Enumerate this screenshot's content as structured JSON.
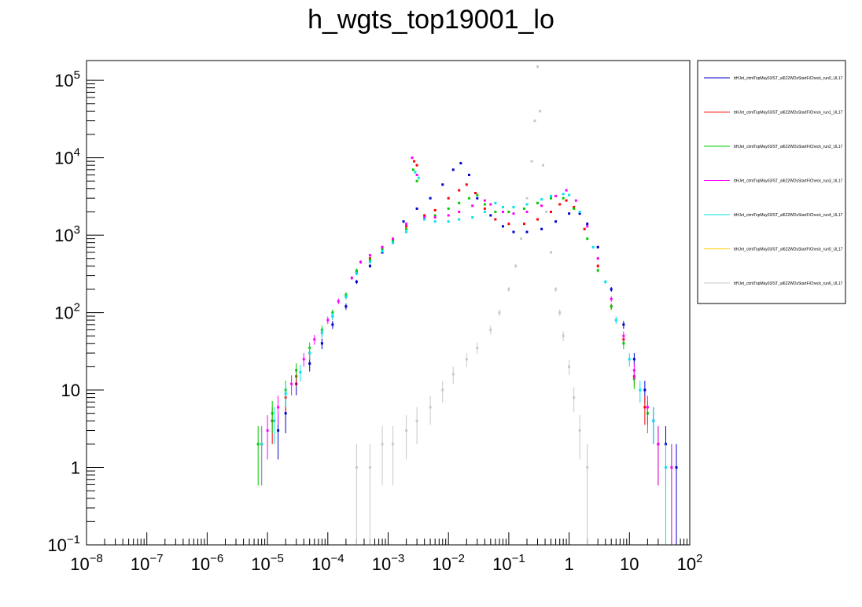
{
  "chart_data": {
    "type": "scatter",
    "title": "h_wgts_top19001_lo",
    "xlabel": "",
    "ylabel": "",
    "xscale": "log",
    "yscale": "log",
    "xlim": [
      1e-08,
      100
    ],
    "ylim": [
      0.1,
      180000
    ],
    "x_tick_labels": [
      {
        "value": 1e-08,
        "base": "10",
        "exp": "−8"
      },
      {
        "value": 1e-07,
        "base": "10",
        "exp": "−7"
      },
      {
        "value": 1e-06,
        "base": "10",
        "exp": "−6"
      },
      {
        "value": 1e-05,
        "base": "10",
        "exp": "−5"
      },
      {
        "value": 0.0001,
        "base": "10",
        "exp": "−4"
      },
      {
        "value": 0.001,
        "base": "10",
        "exp": "−3"
      },
      {
        "value": 0.01,
        "base": "10",
        "exp": "−2"
      },
      {
        "value": 0.1,
        "base": "10",
        "exp": "−1"
      },
      {
        "value": 1,
        "base": "1",
        "exp": ""
      },
      {
        "value": 10,
        "base": "10",
        "exp": ""
      },
      {
        "value": 100,
        "base": "10",
        "exp": "2"
      }
    ],
    "y_tick_labels": [
      {
        "value": 0.1,
        "base": "10",
        "exp": "−1"
      },
      {
        "value": 1,
        "base": "1",
        "exp": ""
      },
      {
        "value": 10,
        "base": "10",
        "exp": ""
      },
      {
        "value": 100,
        "base": "10",
        "exp": "2"
      },
      {
        "value": 1000,
        "base": "10",
        "exp": "3"
      },
      {
        "value": 10000,
        "base": "10",
        "exp": "4"
      },
      {
        "value": 100000,
        "base": "10",
        "exp": "5"
      }
    ],
    "grid": false,
    "legend_position": "right",
    "series": [
      {
        "name": "ttHJet_ctmtTopMay03/ST_al622WDsStartFiCheck_run0_UL17",
        "color": "#0000cc",
        "points": [
          [
            1.5e-05,
            3
          ],
          [
            2e-05,
            5
          ],
          [
            3e-05,
            12
          ],
          [
            5e-05,
            22
          ],
          [
            8e-05,
            40
          ],
          [
            0.00012,
            70
          ],
          [
            0.0002,
            120
          ],
          [
            0.0003,
            250
          ],
          [
            0.0005,
            400
          ],
          [
            0.0008,
            600
          ],
          [
            0.0012,
            800
          ],
          [
            0.0018,
            1500
          ],
          [
            0.003,
            2200
          ],
          [
            0.005,
            3000
          ],
          [
            0.008,
            4500
          ],
          [
            0.012,
            7000
          ],
          [
            0.016,
            8500
          ],
          [
            0.022,
            6000
          ],
          [
            0.03,
            3000
          ],
          [
            0.05,
            1800
          ],
          [
            0.08,
            1300
          ],
          [
            0.12,
            1100
          ],
          [
            0.2,
            1100
          ],
          [
            0.35,
            1200
          ],
          [
            0.6,
            1500
          ],
          [
            1.0,
            1900
          ],
          [
            1.5,
            1900
          ],
          [
            2,
            1400
          ],
          [
            3,
            700
          ],
          [
            5,
            200
          ],
          [
            8,
            70
          ],
          [
            12,
            25
          ],
          [
            18,
            10
          ],
          [
            25,
            4
          ],
          [
            40,
            2
          ],
          [
            60,
            1
          ]
        ]
      },
      {
        "name": "ttHJet_ctmtTopMay03/ST_al622WDsStartFiCheck_run1_UL17",
        "color": "#ff0000",
        "points": [
          [
            8e-06,
            2
          ],
          [
            1.2e-05,
            4
          ],
          [
            2e-05,
            8
          ],
          [
            3e-05,
            15
          ],
          [
            5e-05,
            30
          ],
          [
            8e-05,
            55
          ],
          [
            0.00012,
            90
          ],
          [
            0.0002,
            160
          ],
          [
            0.0003,
            330
          ],
          [
            0.0005,
            500
          ],
          [
            0.0008,
            700
          ],
          [
            0.0012,
            900
          ],
          [
            0.002,
            1300
          ],
          [
            0.0027,
            9000
          ],
          [
            0.003,
            8000
          ],
          [
            0.004,
            1800
          ],
          [
            0.006,
            2100
          ],
          [
            0.01,
            3000
          ],
          [
            0.015,
            3800
          ],
          [
            0.02,
            4500
          ],
          [
            0.028,
            3500
          ],
          [
            0.04,
            2200
          ],
          [
            0.06,
            1600
          ],
          [
            0.1,
            1400
          ],
          [
            0.18,
            1400
          ],
          [
            0.3,
            1600
          ],
          [
            0.5,
            2000
          ],
          [
            0.7,
            2500
          ],
          [
            0.9,
            2800
          ],
          [
            1.2,
            2300
          ],
          [
            1.8,
            1200
          ],
          [
            3,
            400
          ],
          [
            5,
            120
          ],
          [
            8,
            45
          ],
          [
            12,
            15
          ],
          [
            18,
            6
          ],
          [
            30,
            2
          ]
        ]
      },
      {
        "name": "ttHJet_ctmtTopMay03/ST_al622WDsStartFiCheck_run2_UL17",
        "color": "#00cc00",
        "points": [
          [
            7e-06,
            2
          ],
          [
            1.2e-05,
            5
          ],
          [
            2e-05,
            10
          ],
          [
            3e-05,
            18
          ],
          [
            5e-05,
            35
          ],
          [
            8e-05,
            60
          ],
          [
            0.00012,
            100
          ],
          [
            0.0002,
            170
          ],
          [
            0.0003,
            350
          ],
          [
            0.0005,
            480
          ],
          [
            0.0008,
            650
          ],
          [
            0.0012,
            850
          ],
          [
            0.002,
            1200
          ],
          [
            0.0026,
            7000
          ],
          [
            0.003,
            5000
          ],
          [
            0.004,
            1600
          ],
          [
            0.006,
            1800
          ],
          [
            0.01,
            2200
          ],
          [
            0.015,
            2600
          ],
          [
            0.022,
            3000
          ],
          [
            0.03,
            3300
          ],
          [
            0.04,
            2500
          ],
          [
            0.06,
            2000
          ],
          [
            0.1,
            2000
          ],
          [
            0.18,
            2200
          ],
          [
            0.3,
            2600
          ],
          [
            0.5,
            3000
          ],
          [
            0.8,
            3000
          ],
          [
            1.2,
            2200
          ],
          [
            2,
            900
          ],
          [
            3,
            350
          ],
          [
            5,
            120
          ],
          [
            8,
            40
          ],
          [
            12,
            14
          ],
          [
            20,
            5
          ],
          [
            30,
            2
          ],
          [
            50,
            1
          ]
        ]
      },
      {
        "name": "ttHJet_ctmtTopMay03/ST_al622WDsStartFiCheck_run3_UL17",
        "color": "#ff00ff",
        "points": [
          [
            1e-05,
            3
          ],
          [
            1.5e-05,
            6
          ],
          [
            2.5e-05,
            12
          ],
          [
            4e-05,
            25
          ],
          [
            6e-05,
            45
          ],
          [
            0.0001,
            80
          ],
          [
            0.00015,
            140
          ],
          [
            0.00025,
            280
          ],
          [
            0.00035,
            450
          ],
          [
            0.0005,
            550
          ],
          [
            0.0008,
            700
          ],
          [
            0.0012,
            900
          ],
          [
            0.002,
            1400
          ],
          [
            0.0025,
            10000
          ],
          [
            0.003,
            6000
          ],
          [
            0.004,
            1700
          ],
          [
            0.006,
            1700
          ],
          [
            0.01,
            1800
          ],
          [
            0.015,
            2000
          ],
          [
            0.025,
            2400
          ],
          [
            0.04,
            2800
          ],
          [
            0.05,
            2500
          ],
          [
            0.08,
            2000
          ],
          [
            0.12,
            1900
          ],
          [
            0.2,
            2000
          ],
          [
            0.35,
            2400
          ],
          [
            0.6,
            3200
          ],
          [
            0.9,
            3800
          ],
          [
            1.3,
            2800
          ],
          [
            2,
            1300
          ],
          [
            3,
            500
          ],
          [
            5,
            150
          ],
          [
            8,
            50
          ],
          [
            12,
            18
          ],
          [
            20,
            6
          ],
          [
            30,
            2
          ],
          [
            50,
            1
          ]
        ]
      },
      {
        "name": "ttHJet_ctmtTopMay03/ST_al622WDsStartFiCheck_run4_UL17",
        "color": "#00e5ee",
        "points": [
          [
            8e-06,
            2
          ],
          [
            1.3e-05,
            4
          ],
          [
            2e-05,
            9
          ],
          [
            3.5e-05,
            17
          ],
          [
            5e-05,
            30
          ],
          [
            8e-05,
            55
          ],
          [
            0.00012,
            90
          ],
          [
            0.0002,
            160
          ],
          [
            0.0003,
            320
          ],
          [
            0.0005,
            450
          ],
          [
            0.0008,
            620
          ],
          [
            0.0012,
            800
          ],
          [
            0.002,
            1100
          ],
          [
            0.0028,
            6500
          ],
          [
            0.0032,
            5500
          ],
          [
            0.004,
            1600
          ],
          [
            0.006,
            1500
          ],
          [
            0.01,
            1500
          ],
          [
            0.015,
            1600
          ],
          [
            0.025,
            1700
          ],
          [
            0.04,
            2000
          ],
          [
            0.06,
            2600
          ],
          [
            0.08,
            2300
          ],
          [
            0.12,
            2300
          ],
          [
            0.2,
            2500
          ],
          [
            0.35,
            2900
          ],
          [
            0.5,
            3200
          ],
          [
            0.8,
            3400
          ],
          [
            1.0,
            3300
          ],
          [
            1.5,
            2000
          ],
          [
            2.5,
            700
          ],
          [
            4,
            250
          ],
          [
            6,
            80
          ],
          [
            10,
            25
          ],
          [
            15,
            10
          ],
          [
            25,
            4
          ],
          [
            40,
            1
          ]
        ]
      },
      {
        "name": "ttHJet_ctmtTopMay03/ST_al622WDsStartFiCheck_run5_UL17",
        "color": "#ffcc00",
        "points": [
          [
            0.3,
            150000
          ]
        ]
      },
      {
        "name": "ttHJet_ctmtTopMay03/ST_al622WDsStartFiCheck_run6_UL17",
        "color": "#c8c8c8",
        "points": [
          [
            0.0003,
            1
          ],
          [
            0.0005,
            1
          ],
          [
            0.0008,
            2
          ],
          [
            0.0012,
            2
          ],
          [
            0.002,
            3
          ],
          [
            0.003,
            4
          ],
          [
            0.005,
            6
          ],
          [
            0.008,
            10
          ],
          [
            0.012,
            16
          ],
          [
            0.02,
            25
          ],
          [
            0.03,
            35
          ],
          [
            0.05,
            60
          ],
          [
            0.07,
            100
          ],
          [
            0.1,
            200
          ],
          [
            0.13,
            400
          ],
          [
            0.16,
            900
          ],
          [
            0.2,
            3000
          ],
          [
            0.24,
            9000
          ],
          [
            0.27,
            30000
          ],
          [
            0.3,
            150000
          ],
          [
            0.33,
            40000
          ],
          [
            0.37,
            8000
          ],
          [
            0.42,
            2000
          ],
          [
            0.5,
            600
          ],
          [
            0.6,
            200
          ],
          [
            0.7,
            100
          ],
          [
            0.8,
            50
          ],
          [
            1.0,
            20
          ],
          [
            1.2,
            8
          ],
          [
            1.5,
            3
          ],
          [
            2,
            1
          ]
        ]
      }
    ]
  }
}
